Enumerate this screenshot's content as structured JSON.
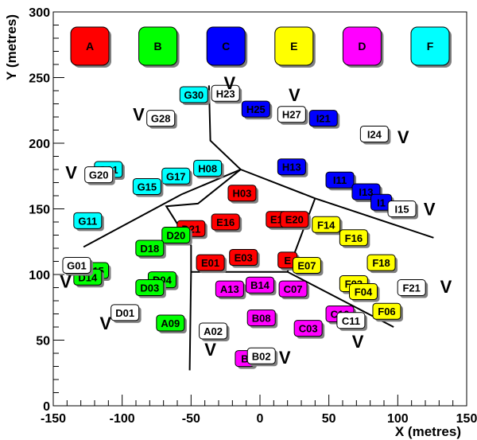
{
  "chart_data": {
    "type": "scatter",
    "title": "",
    "xlabel": "X (metres)",
    "ylabel": "Y (metres)",
    "xlim": [
      -150,
      150
    ],
    "ylim": [
      0,
      300
    ],
    "xticks": [
      -150,
      -100,
      -50,
      0,
      50,
      100,
      150
    ],
    "yticks": [
      0,
      50,
      100,
      150,
      200,
      250,
      300
    ],
    "grid": false,
    "legend": {
      "placement": "top",
      "entries": [
        {
          "name": "A",
          "color": "#ff0000"
        },
        {
          "name": "B",
          "color": "#00ff00"
        },
        {
          "name": "C",
          "color": "#0000ff"
        },
        {
          "name": "E",
          "color": "#ffff00"
        },
        {
          "name": "D",
          "color": "#ff00ff"
        },
        {
          "name": "F",
          "color": "#00ffff"
        }
      ]
    },
    "series": [
      {
        "name": "A",
        "color": "#ff0000",
        "points": [
          {
            "label": "H03",
            "x": -13,
            "y": 162
          },
          {
            "label": "D21",
            "x": -50,
            "y": 135
          },
          {
            "label": "E16",
            "x": -25,
            "y": 140
          },
          {
            "label": "E1",
            "x": 12,
            "y": 142
          },
          {
            "label": "E20",
            "x": 25,
            "y": 142
          },
          {
            "label": "E01",
            "x": -36,
            "y": 109
          },
          {
            "label": "E03",
            "x": -12,
            "y": 113
          },
          {
            "label": "E",
            "x": 20,
            "y": 111
          }
        ]
      },
      {
        "name": "B",
        "color": "#00ff00",
        "points": [
          {
            "label": "D20",
            "x": -61,
            "y": 130
          },
          {
            "label": "D18",
            "x": -80,
            "y": 120
          },
          {
            "label": "D15",
            "x": -120,
            "y": 103
          },
          {
            "label": "D14",
            "x": -125,
            "y": 98
          },
          {
            "label": "D04",
            "x": -71,
            "y": 96
          },
          {
            "label": "D03",
            "x": -80,
            "y": 90
          },
          {
            "label": "A09",
            "x": -65,
            "y": 63
          }
        ]
      },
      {
        "name": "C",
        "color": "#0000ff",
        "points": [
          {
            "label": "H25",
            "x": -3,
            "y": 226
          },
          {
            "label": "I21",
            "x": 46,
            "y": 219
          },
          {
            "label": "H13",
            "x": 23,
            "y": 182
          },
          {
            "label": "I11",
            "x": 58,
            "y": 172
          },
          {
            "label": "I13",
            "x": 77,
            "y": 163
          },
          {
            "label": "I1",
            "x": 88,
            "y": 155
          }
        ]
      },
      {
        "name": "E",
        "color": "#ffff00",
        "points": [
          {
            "label": "F14",
            "x": 48,
            "y": 138
          },
          {
            "label": "F16",
            "x": 68,
            "y": 128
          },
          {
            "label": "F18",
            "x": 88,
            "y": 109
          },
          {
            "label": "E07",
            "x": 34,
            "y": 107
          },
          {
            "label": "F03",
            "x": 68,
            "y": 93
          },
          {
            "label": "F04",
            "x": 75,
            "y": 87
          },
          {
            "label": "F06",
            "x": 92,
            "y": 72
          }
        ]
      },
      {
        "name": "D",
        "color": "#ff00ff",
        "points": [
          {
            "label": "A13",
            "x": -22,
            "y": 89
          },
          {
            "label": "B14",
            "x": 0,
            "y": 92
          },
          {
            "label": "C07",
            "x": 24,
            "y": 89
          },
          {
            "label": "B08",
            "x": 1,
            "y": 67
          },
          {
            "label": "C10",
            "x": 58,
            "y": 70
          },
          {
            "label": "C03",
            "x": 35,
            "y": 59
          },
          {
            "label": "B",
            "x": -11,
            "y": 36
          }
        ]
      },
      {
        "name": "F",
        "color": "#00ffff",
        "points": [
          {
            "label": "G30",
            "x": -48,
            "y": 237
          },
          {
            "label": "G21",
            "x": -110,
            "y": 180
          },
          {
            "label": "G17",
            "x": -61,
            "y": 175
          },
          {
            "label": "H08",
            "x": -38,
            "y": 181
          },
          {
            "label": "G15",
            "x": -82,
            "y": 167
          },
          {
            "label": "G11",
            "x": -125,
            "y": 141
          }
        ]
      },
      {
        "name": "",
        "color": "#ffffff",
        "points": [
          {
            "label": "H23",
            "x": -25,
            "y": 238
          },
          {
            "label": "H27",
            "x": 23,
            "y": 222
          },
          {
            "label": "G28",
            "x": -72,
            "y": 219
          },
          {
            "label": "I24",
            "x": 83,
            "y": 207
          },
          {
            "label": "G20",
            "x": -117,
            "y": 176
          },
          {
            "label": "I15",
            "x": 103,
            "y": 150
          },
          {
            "label": "G01",
            "x": -133,
            "y": 107
          },
          {
            "label": "F21",
            "x": 110,
            "y": 90
          },
          {
            "label": "D01",
            "x": -98,
            "y": 71
          },
          {
            "label": "A02",
            "x": -34,
            "y": 57
          },
          {
            "label": "C11",
            "x": 66,
            "y": 65
          },
          {
            "label": "B02",
            "x": 1,
            "y": 38
          }
        ]
      }
    ],
    "annotations": [
      {
        "text": "V",
        "x": -22,
        "y": 246
      },
      {
        "text": "V",
        "x": 25,
        "y": 237
      },
      {
        "text": "V",
        "x": -88,
        "y": 222
      },
      {
        "text": "V",
        "x": 104,
        "y": 205
      },
      {
        "text": "V",
        "x": -137,
        "y": 178
      },
      {
        "text": "V",
        "x": 123,
        "y": 150
      },
      {
        "text": "V",
        "x": -141,
        "y": 95
      },
      {
        "text": "V",
        "x": 135,
        "y": 91
      },
      {
        "text": "V",
        "x": -112,
        "y": 63
      },
      {
        "text": "V",
        "x": -36,
        "y": 43
      },
      {
        "text": "V",
        "x": 71,
        "y": 49
      },
      {
        "text": "V",
        "x": 18,
        "y": 37
      }
    ],
    "boundaries": [
      [
        [
          -37,
          244
        ],
        [
          -36,
          202
        ],
        [
          -14,
          180
        ],
        [
          -57,
          161
        ],
        [
          -128,
          121
        ]
      ],
      [
        [
          -14,
          180
        ],
        [
          40,
          158
        ],
        [
          126,
          128
        ]
      ],
      [
        [
          40,
          158
        ],
        [
          20,
          102
        ],
        [
          97,
          60
        ]
      ],
      [
        [
          -14,
          180
        ],
        [
          -45,
          154
        ],
        [
          -68,
          152
        ],
        [
          -50,
          122
        ],
        [
          -50,
          102
        ],
        [
          -51,
          27
        ]
      ],
      [
        [
          -50,
          102
        ],
        [
          20,
          102
        ]
      ]
    ]
  }
}
